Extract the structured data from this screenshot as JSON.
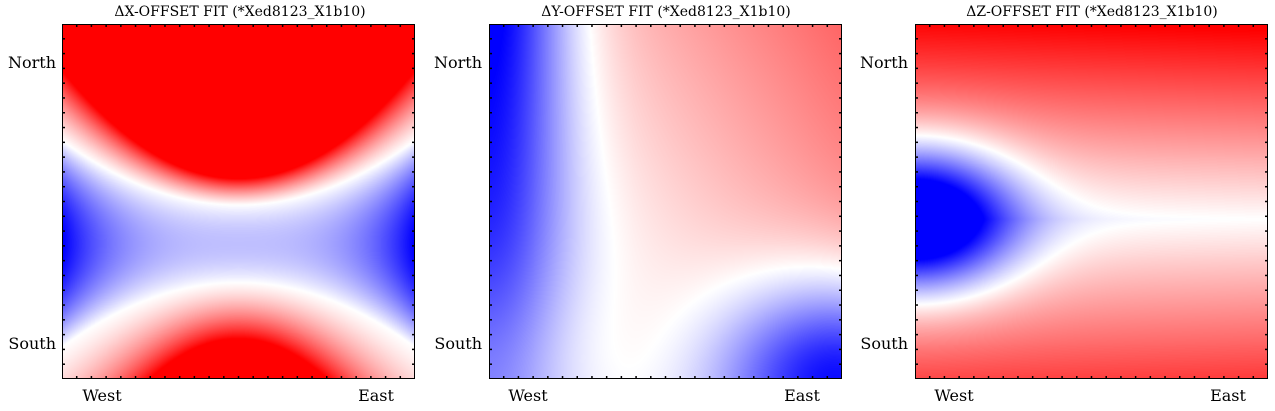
{
  "chart_data": [
    {
      "type": "heatmap",
      "title": "ΔX-OFFSET FIT (*Xed8123_X1b10)",
      "y_ticklabels": [
        "North",
        "South"
      ],
      "x_ticklabels": [
        "West",
        "East"
      ],
      "colormap": "bwr",
      "pattern": "x"
    },
    {
      "type": "heatmap",
      "title": "ΔY-OFFSET FIT (*Xed8123_X1b10)",
      "y_ticklabels": [
        "North",
        "South"
      ],
      "x_ticklabels": [
        "West",
        "East"
      ],
      "colormap": "bwr",
      "pattern": "y"
    },
    {
      "type": "heatmap",
      "title": "ΔZ-OFFSET FIT (*Xed8123_X1b10)",
      "y_ticklabels": [
        "North",
        "South"
      ],
      "x_ticklabels": [
        "West",
        "East"
      ],
      "colormap": "bwr",
      "pattern": "z"
    }
  ],
  "colors": {
    "low": "#0000ff",
    "mid": "#ffffff",
    "high": "#ff0000"
  }
}
